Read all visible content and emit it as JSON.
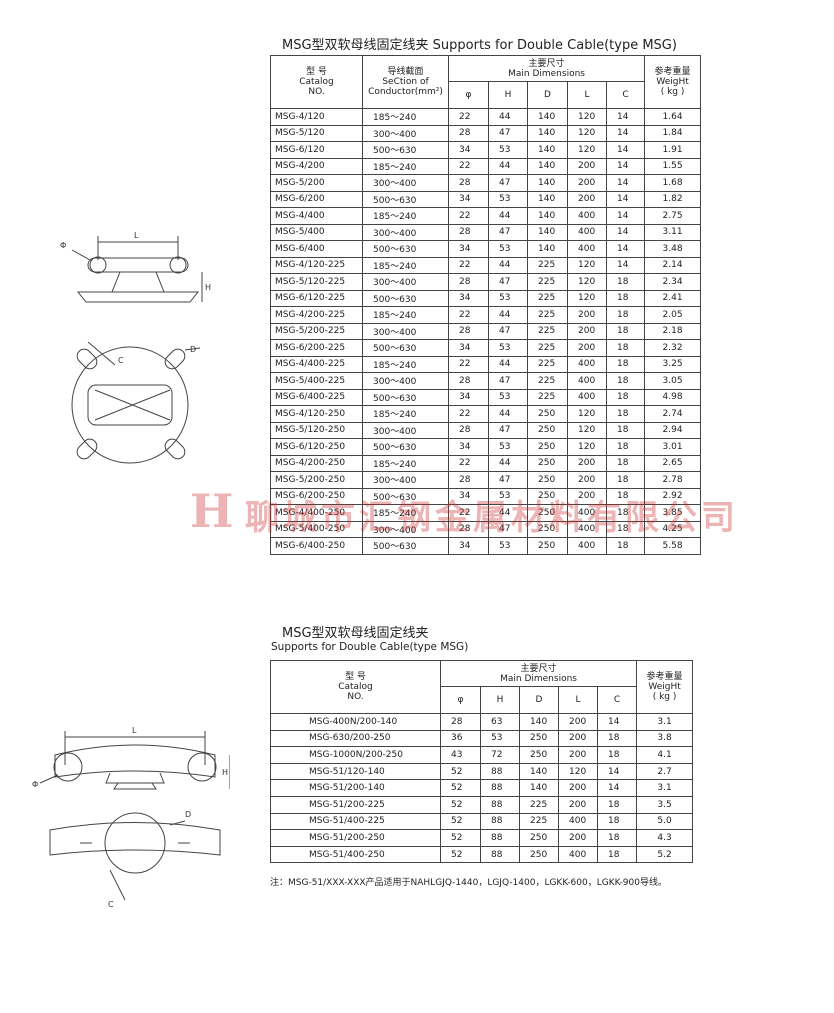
{
  "header": {
    "title": "MSG型双软母线固定线夹 Supports for Double Cable(type MSG)"
  },
  "table": {
    "head": {
      "catalog": [
        "型 号",
        "Catalog",
        "NO."
      ],
      "section": [
        "导线截面",
        "SeCtion of",
        "Conductor(mm²)"
      ],
      "main": [
        "主要尺寸",
        "Main Dimensions"
      ],
      "dims": [
        "φ",
        "H",
        "D",
        "L",
        "C"
      ],
      "weight": [
        "参考重量",
        "WeigHt",
        "( kg )"
      ]
    },
    "rows": [
      [
        "MSG-4/120",
        "185～240",
        "22",
        "44",
        "140",
        "120",
        "14",
        "1.64"
      ],
      [
        "MSG-5/120",
        "300～400",
        "28",
        "47",
        "140",
        "120",
        "14",
        "1.84"
      ],
      [
        "MSG-6/120",
        "500～630",
        "34",
        "53",
        "140",
        "120",
        "14",
        "1.91"
      ],
      [
        "MSG-4/200",
        "185～240",
        "22",
        "44",
        "140",
        "200",
        "14",
        "1.55"
      ],
      [
        "MSG-5/200",
        "300～400",
        "28",
        "47",
        "140",
        "200",
        "14",
        "1.68"
      ],
      [
        "MSG-6/200",
        "500～630",
        "34",
        "53",
        "140",
        "200",
        "14",
        "1.82"
      ],
      [
        "MSG-4/400",
        "185～240",
        "22",
        "44",
        "140",
        "400",
        "14",
        "2.75"
      ],
      [
        "MSG-5/400",
        "300～400",
        "28",
        "47",
        "140",
        "400",
        "14",
        "3.11"
      ],
      [
        "MSG-6/400",
        "500～630",
        "34",
        "53",
        "140",
        "400",
        "14",
        "3.48"
      ],
      [
        "MSG-4/120-225",
        "185～240",
        "22",
        "44",
        "225",
        "120",
        "14",
        "2.14"
      ],
      [
        "MSG-5/120-225",
        "300～400",
        "28",
        "47",
        "225",
        "120",
        "18",
        "2.34"
      ],
      [
        "MSG-6/120-225",
        "500～630",
        "34",
        "53",
        "225",
        "120",
        "18",
        "2.41"
      ],
      [
        "MSG-4/200-225",
        "185～240",
        "22",
        "44",
        "225",
        "200",
        "18",
        "2.05"
      ],
      [
        "MSG-5/200-225",
        "300～400",
        "28",
        "47",
        "225",
        "200",
        "18",
        "2.18"
      ],
      [
        "MSG-6/200-225",
        "500～630",
        "34",
        "53",
        "225",
        "200",
        "18",
        "2.32"
      ],
      [
        "MSG-4/400-225",
        "185～240",
        "22",
        "44",
        "225",
        "400",
        "18",
        "3.25"
      ],
      [
        "MSG-5/400-225",
        "300～400",
        "28",
        "47",
        "225",
        "400",
        "18",
        "3.05"
      ],
      [
        "MSG-6/400-225",
        "500～630",
        "34",
        "53",
        "225",
        "400",
        "18",
        "4.98"
      ],
      [
        "MSG-4/120-250",
        "185～240",
        "22",
        "44",
        "250",
        "120",
        "18",
        "2.74"
      ],
      [
        "MSG-5/120-250",
        "300～400",
        "28",
        "47",
        "250",
        "120",
        "18",
        "2.94"
      ],
      [
        "MSG-6/120-250",
        "500～630",
        "34",
        "53",
        "250",
        "120",
        "18",
        "3.01"
      ],
      [
        "MSG-4/200-250",
        "185～240",
        "22",
        "44",
        "250",
        "200",
        "18",
        "2.65"
      ],
      [
        "MSG-5/200-250",
        "300～400",
        "28",
        "47",
        "250",
        "200",
        "18",
        "2.78"
      ],
      [
        "MSG-6/200-250",
        "500～630",
        "34",
        "53",
        "250",
        "200",
        "18",
        "2.92"
      ],
      [
        "MSG-4/400-250",
        "185～240",
        "22",
        "44",
        "250",
        "400",
        "18",
        "3.85"
      ],
      [
        "MSG-5/400-250",
        "300～400",
        "28",
        "47",
        "250",
        "400",
        "18",
        "4.25"
      ],
      [
        "MSG-6/400-250",
        "500～630",
        "34",
        "53",
        "250",
        "400",
        "18",
        "5.58"
      ]
    ]
  },
  "section2": {
    "title": "MSG型双软母线固定线夹",
    "subtitle": "Supports for Double Cable(type MSG)"
  },
  "table2": {
    "head": {
      "catalog": [
        "型 号",
        "Catalog",
        "NO."
      ],
      "main": [
        "主要尺寸",
        "Main Dimensions"
      ],
      "dims": [
        "φ",
        "H",
        "D",
        "L",
        "C"
      ],
      "weight": [
        "参考重量",
        "WeigHt",
        "( kg )"
      ]
    },
    "rows": [
      [
        "MSG-400N/200-140",
        "28",
        "63",
        "140",
        "200",
        "14",
        "3.1"
      ],
      [
        "MSG-630/200-250",
        "36",
        "53",
        "250",
        "200",
        "18",
        "3.8"
      ],
      [
        "MSG-1000N/200-250",
        "43",
        "72",
        "250",
        "200",
        "18",
        "4.1"
      ],
      [
        "MSG-51/120-140",
        "52",
        "88",
        "140",
        "120",
        "14",
        "2.7"
      ],
      [
        "MSG-51/200-140",
        "52",
        "88",
        "140",
        "200",
        "14",
        "3.1"
      ],
      [
        "MSG-51/200-225",
        "52",
        "88",
        "225",
        "200",
        "18",
        "3.5"
      ],
      [
        "MSG-51/400-225",
        "52",
        "88",
        "225",
        "400",
        "18",
        "5.0"
      ],
      [
        "MSG-51/200-250",
        "52",
        "88",
        "250",
        "200",
        "18",
        "4.3"
      ],
      [
        "MSG-51/400-250",
        "52",
        "88",
        "250",
        "400",
        "18",
        "5.2"
      ]
    ]
  },
  "note": "注：MSG-51/XXX-XXX产品适用于NAHLGJQ-1440，LGJQ-1400，LGKK-600，LGKK-900导线。",
  "watermark": {
    "logo": "H",
    "text": "聊城市汇钢金属材料有限公司"
  },
  "diagram1": {
    "labels": [
      "L",
      "Φ",
      "H",
      "C",
      "D"
    ]
  },
  "diagram2": {
    "labels": [
      "L",
      "Φ",
      "H",
      "D",
      "C"
    ]
  }
}
